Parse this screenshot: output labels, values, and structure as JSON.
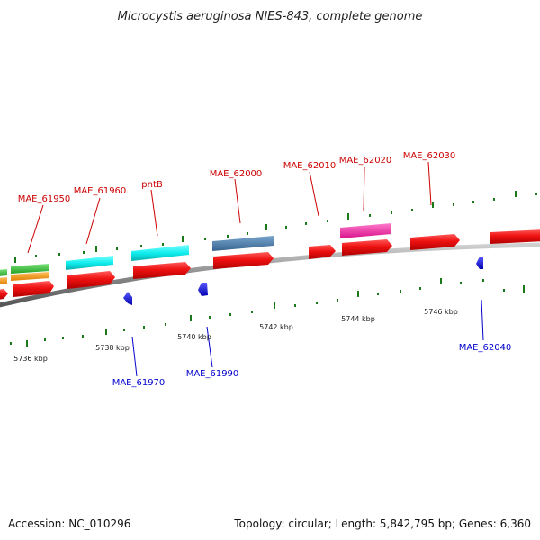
{
  "title": "Microcystis aeruginosa NIES-843, complete genome",
  "footer": {
    "accession": "Accession: NC_010296",
    "topology": "Topology: circular; Length: 5,842,795 bp; Genes: 6,360"
  },
  "scale_labels": [
    "5736 kbp",
    "5738 kbp",
    "5740 kbp",
    "5742 kbp",
    "5744 kbp",
    "5746 kbp"
  ],
  "top_gene_labels": [
    "MAE_61950",
    "MAE_61960",
    "pntB",
    "MAE_62000",
    "MAE_62010",
    "MAE_62020",
    "MAE_62030"
  ],
  "bottom_gene_labels": [
    "MAE_61970",
    "MAE_61990",
    "MAE_62040"
  ],
  "colors": {
    "label_top": "#cc0000",
    "label_bottom": "#0000cc",
    "tick": "#1a7a1a",
    "backbone": "#8a8a8a",
    "cds_red": "#ee1111",
    "gene_cyan": "#11eeee",
    "gene_green": "#33cc33",
    "gene_orange": "#ff9900",
    "gene_steelblue": "#4a7fb0",
    "gene_magenta": "#ff22aa",
    "reverse_gene_blue": "#1111ee"
  }
}
